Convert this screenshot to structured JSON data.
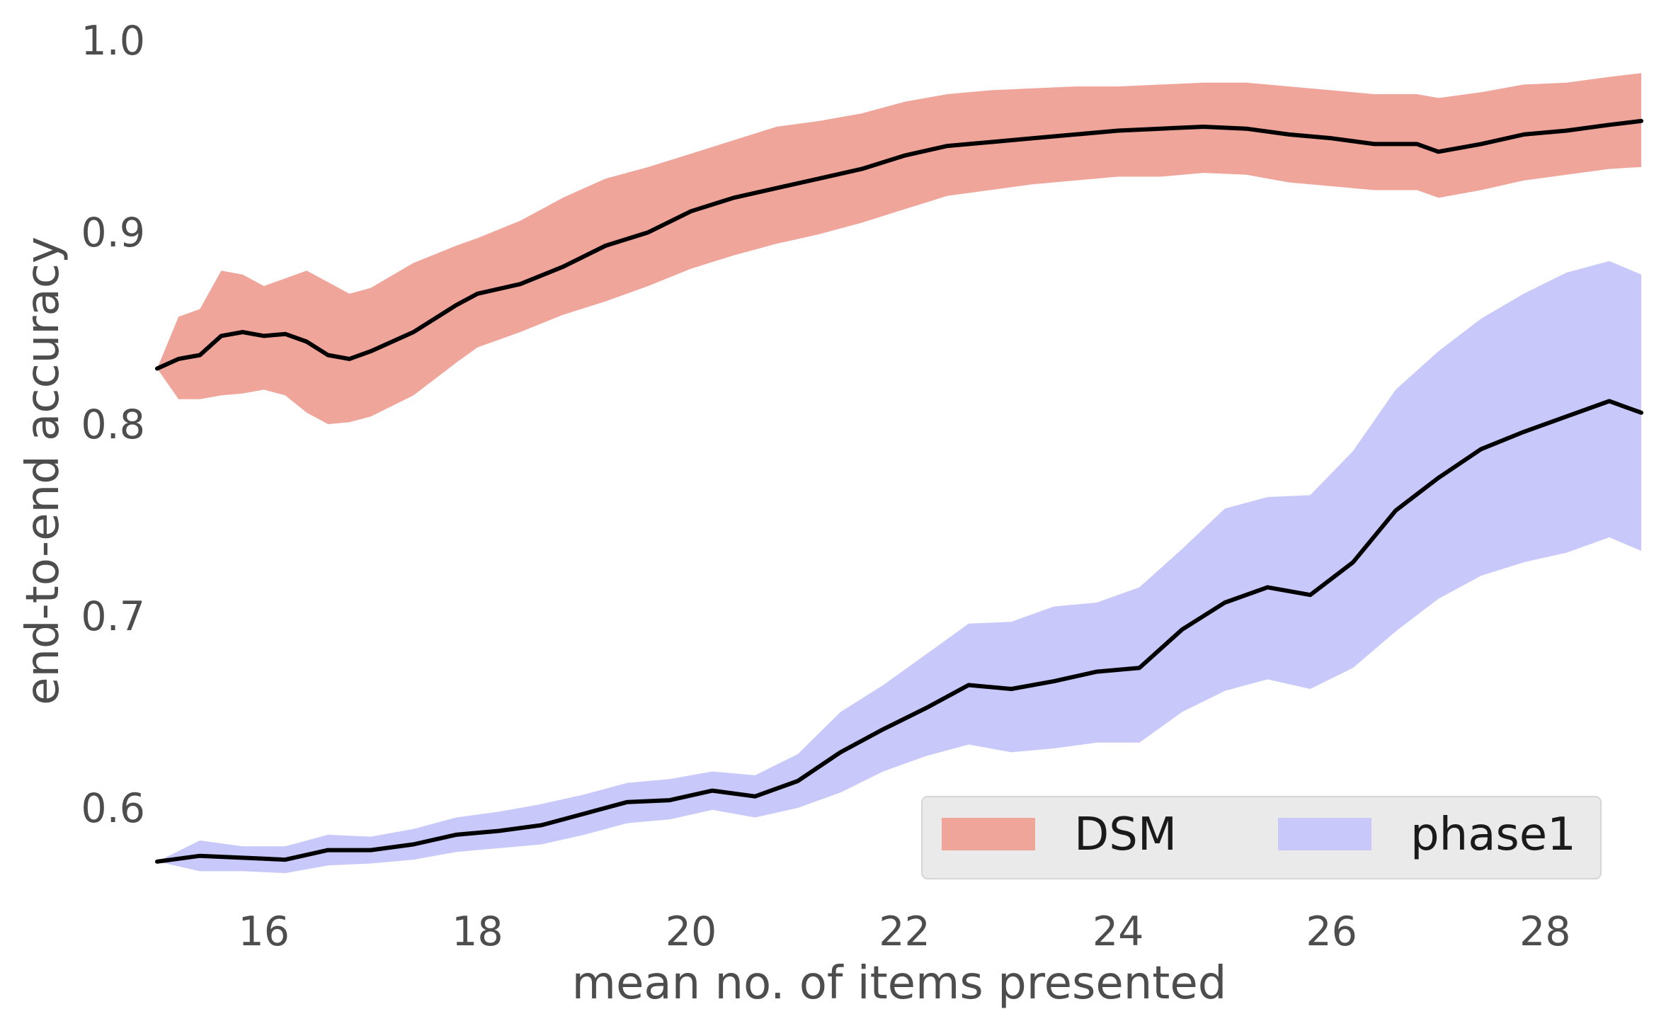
{
  "chart_data": {
    "type": "line",
    "xlabel": "mean no. of items presented",
    "ylabel": "end-to-end accuracy",
    "xlim": [
      15.0,
      28.9
    ],
    "ylim": [
      0.545,
      1.01
    ],
    "xticks": [
      16,
      18,
      20,
      22,
      24,
      26,
      28
    ],
    "xtick_labels": [
      "16",
      "18",
      "20",
      "22",
      "24",
      "26",
      "28"
    ],
    "yticks": [
      0.6,
      0.7,
      0.8,
      0.9,
      1.0
    ],
    "ytick_labels": [
      "0.6",
      "0.7",
      "0.8",
      "0.9",
      "1.0"
    ],
    "grid": false,
    "legend": {
      "position": "lower-right",
      "columns": 2
    },
    "series": [
      {
        "name": "DSM",
        "band_color": "#f0a59b",
        "line_color": "#000000",
        "x": [
          15.0,
          15.2,
          15.4,
          15.6,
          15.8,
          16.0,
          16.2,
          16.4,
          16.6,
          16.8,
          17.0,
          17.4,
          17.8,
          18.0,
          18.4,
          18.8,
          19.2,
          19.6,
          20.0,
          20.4,
          20.8,
          21.2,
          21.6,
          22.0,
          22.4,
          22.8,
          23.2,
          23.6,
          24.0,
          24.4,
          24.8,
          25.2,
          25.6,
          26.0,
          26.4,
          26.8,
          27.0,
          27.4,
          27.8,
          28.2,
          28.6,
          28.9
        ],
        "mean": [
          0.829,
          0.834,
          0.836,
          0.846,
          0.848,
          0.846,
          0.847,
          0.843,
          0.836,
          0.834,
          0.838,
          0.848,
          0.862,
          0.868,
          0.873,
          0.882,
          0.893,
          0.9,
          0.911,
          0.918,
          0.923,
          0.928,
          0.933,
          0.94,
          0.945,
          0.947,
          0.949,
          0.951,
          0.953,
          0.954,
          0.955,
          0.954,
          0.951,
          0.949,
          0.946,
          0.946,
          0.942,
          0.946,
          0.951,
          0.953,
          0.956,
          0.958
        ],
        "upper": [
          0.829,
          0.856,
          0.86,
          0.88,
          0.878,
          0.872,
          0.876,
          0.88,
          0.874,
          0.868,
          0.871,
          0.884,
          0.893,
          0.897,
          0.906,
          0.918,
          0.928,
          0.934,
          0.941,
          0.948,
          0.955,
          0.958,
          0.962,
          0.968,
          0.972,
          0.974,
          0.975,
          0.976,
          0.976,
          0.977,
          0.978,
          0.978,
          0.976,
          0.974,
          0.972,
          0.972,
          0.97,
          0.973,
          0.977,
          0.978,
          0.981,
          0.983
        ],
        "lower": [
          0.829,
          0.813,
          0.813,
          0.815,
          0.816,
          0.818,
          0.815,
          0.806,
          0.8,
          0.801,
          0.804,
          0.815,
          0.832,
          0.84,
          0.848,
          0.857,
          0.864,
          0.872,
          0.881,
          0.888,
          0.894,
          0.899,
          0.905,
          0.912,
          0.919,
          0.922,
          0.925,
          0.927,
          0.929,
          0.929,
          0.931,
          0.93,
          0.926,
          0.924,
          0.922,
          0.922,
          0.918,
          0.922,
          0.927,
          0.93,
          0.933,
          0.934
        ]
      },
      {
        "name": "phase1",
        "band_color": "#c8c8fb",
        "line_color": "#000000",
        "x": [
          15.0,
          15.4,
          15.8,
          16.2,
          16.6,
          17.0,
          17.4,
          17.8,
          18.2,
          18.6,
          19.0,
          19.4,
          19.8,
          20.2,
          20.6,
          21.0,
          21.4,
          21.8,
          22.2,
          22.6,
          23.0,
          23.4,
          23.8,
          24.2,
          24.6,
          25.0,
          25.4,
          25.8,
          26.2,
          26.6,
          27.0,
          27.4,
          27.8,
          28.2,
          28.6,
          28.9
        ],
        "mean": [
          0.572,
          0.575,
          0.574,
          0.573,
          0.578,
          0.578,
          0.581,
          0.586,
          0.588,
          0.591,
          0.597,
          0.603,
          0.604,
          0.609,
          0.606,
          0.614,
          0.629,
          0.641,
          0.652,
          0.664,
          0.662,
          0.666,
          0.671,
          0.673,
          0.693,
          0.707,
          0.715,
          0.711,
          0.728,
          0.755,
          0.772,
          0.787,
          0.796,
          0.804,
          0.812,
          0.806
        ],
        "upper": [
          0.572,
          0.583,
          0.58,
          0.58,
          0.586,
          0.585,
          0.589,
          0.595,
          0.598,
          0.602,
          0.607,
          0.613,
          0.615,
          0.619,
          0.617,
          0.628,
          0.65,
          0.664,
          0.68,
          0.696,
          0.697,
          0.705,
          0.707,
          0.715,
          0.735,
          0.756,
          0.762,
          0.763,
          0.786,
          0.818,
          0.838,
          0.855,
          0.868,
          0.879,
          0.885,
          0.878
        ],
        "lower": [
          0.572,
          0.567,
          0.567,
          0.566,
          0.57,
          0.571,
          0.573,
          0.577,
          0.579,
          0.581,
          0.586,
          0.592,
          0.594,
          0.599,
          0.595,
          0.6,
          0.608,
          0.619,
          0.627,
          0.633,
          0.629,
          0.631,
          0.634,
          0.634,
          0.65,
          0.661,
          0.667,
          0.662,
          0.673,
          0.692,
          0.709,
          0.721,
          0.728,
          0.733,
          0.741,
          0.734
        ]
      }
    ]
  }
}
